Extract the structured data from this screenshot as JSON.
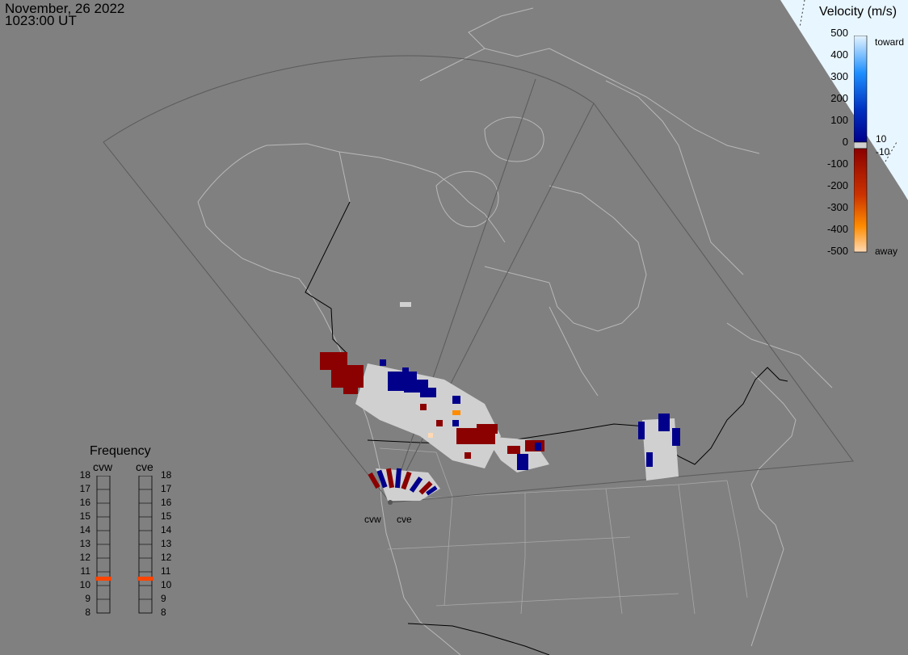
{
  "header": {
    "date": "November, 26 2022",
    "time": "1023:00 UT"
  },
  "colors": {
    "background": "#808080",
    "coastline": "#b8b8b8",
    "border": "#000000",
    "fov": "#5a5a5a",
    "ground_scatter": "#d0d0d0",
    "toward_dark": "#00008b",
    "toward_light": "#e6f4ff",
    "away_dark": "#8b0000",
    "away_light": "#ffd9b3",
    "frequency_marker": "#ff4500"
  },
  "velocity_scale": {
    "title": "Velocity (m/s)",
    "ticks": [
      "500",
      "400",
      "300",
      "200",
      "100",
      "0",
      "-100",
      "-200",
      "-300",
      "-400",
      "-500"
    ],
    "toward_label": "toward",
    "away_label": "away",
    "threshold_pos": "10",
    "threshold_neg": "-10"
  },
  "frequency_panel": {
    "title": "Frequency",
    "radars": [
      {
        "name": "cvw",
        "current_mhz": 10.5
      },
      {
        "name": "cve",
        "current_mhz": 10.5
      }
    ],
    "ticks": [
      "18",
      "17",
      "16",
      "15",
      "14",
      "13",
      "12",
      "11",
      "10",
      "9",
      "8"
    ]
  },
  "radar_sites": [
    "cvw",
    "cve"
  ],
  "icons": [
    "velocity-colorbar",
    "frequency-bar",
    "radar-site-marker"
  ]
}
